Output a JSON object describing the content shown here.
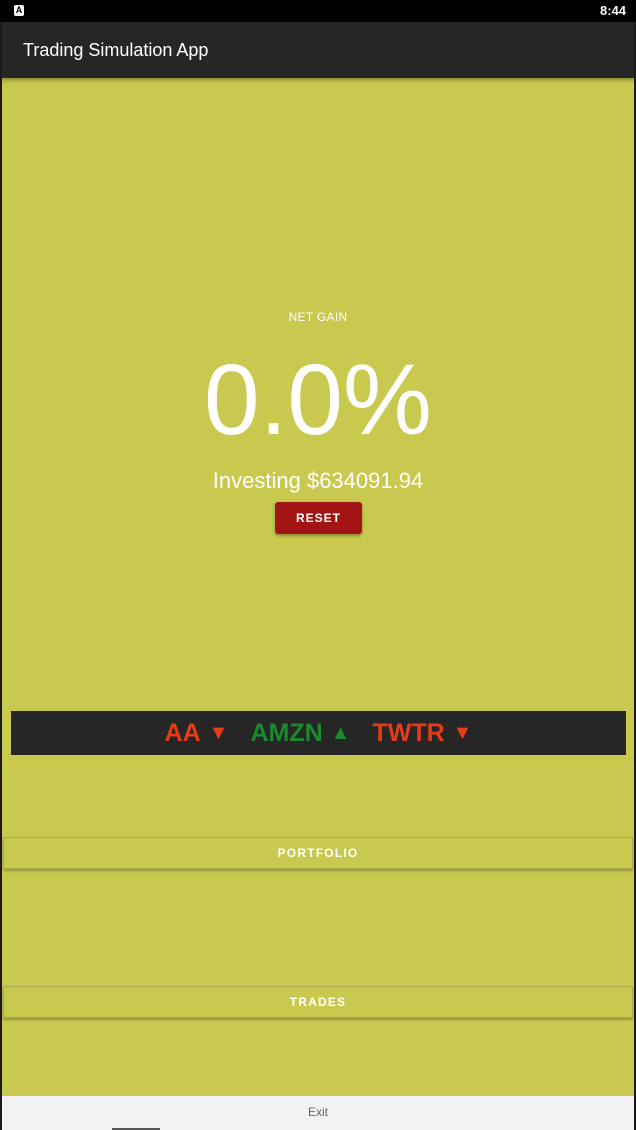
{
  "status_bar": {
    "app_icon_letter": "A",
    "time": "8:44"
  },
  "app_bar": {
    "title": "Trading Simulation App"
  },
  "summary": {
    "net_gain_label": "NET GAIN",
    "net_gain_value": "0.0%",
    "investing_text": "Investing $634091.94",
    "reset_label": "RESET"
  },
  "ticker": {
    "items": [
      {
        "symbol": "AA",
        "arrow": "▼",
        "direction": "down",
        "color": "#e63b17"
      },
      {
        "symbol": "AMZN",
        "arrow": "▲",
        "direction": "up",
        "color": "#1a8a2e"
      },
      {
        "symbol": "TWTR",
        "arrow": "▼",
        "direction": "down",
        "color": "#e63b17"
      }
    ]
  },
  "nav": {
    "portfolio_label": "PORTFOLIO",
    "trades_label": "TRADES"
  },
  "footer": {
    "exit_label": "Exit"
  },
  "colors": {
    "background": "#c8c94e",
    "app_bar": "#262626",
    "reset_button": "#a31515"
  }
}
